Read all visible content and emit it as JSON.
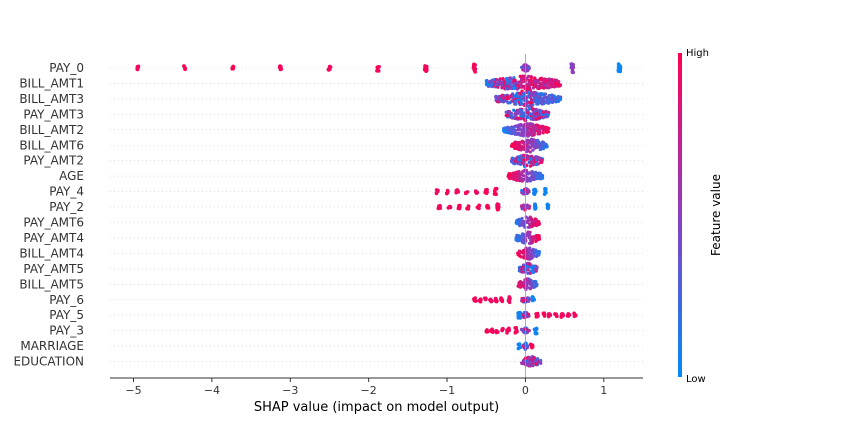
{
  "chart_data": {
    "type": "scatter",
    "subtype": "shap-beeswarm",
    "xlabel": "SHAP value (impact on model output)",
    "xlim": [
      -5.3,
      1.5
    ],
    "xticks": [
      -5,
      -4,
      -3,
      -2,
      -1,
      0,
      1
    ],
    "grid": false,
    "colorbar": {
      "title": "Feature value",
      "high_label": "High",
      "low_label": "Low",
      "low_color": "#008bfb",
      "mid_color": "#8c3fc1",
      "high_color": "#ff0052"
    },
    "features": [
      {
        "name": "PAY_0",
        "min": -4.95,
        "max": 1.2,
        "spread": 4.2,
        "body": [
          -0.05,
          0.05
        ],
        "clusters": [
          [
            -4.95,
            "h",
            2
          ],
          [
            -4.35,
            "h",
            2
          ],
          [
            -3.73,
            "h",
            2
          ],
          [
            -3.12,
            "h",
            2.5
          ],
          [
            -2.5,
            "h",
            3
          ],
          [
            -1.88,
            "h",
            3
          ],
          [
            -1.27,
            "h",
            3.5
          ],
          [
            -0.65,
            "h",
            4
          ],
          [
            0.0,
            "m",
            3
          ],
          [
            0.6,
            "m",
            4.5
          ],
          [
            1.2,
            "l",
            4
          ]
        ]
      },
      {
        "name": "BILL_AMT1",
        "min": -0.5,
        "max": 0.45,
        "spread": 8,
        "body": [
          -0.5,
          0.45
        ],
        "trend": "mixed-high-right"
      },
      {
        "name": "BILL_AMT3",
        "min": -0.38,
        "max": 0.45,
        "spread": 7.5,
        "body": [
          -0.38,
          0.45
        ],
        "trend": "mixed-low-right"
      },
      {
        "name": "PAY_AMT3",
        "min": -0.25,
        "max": 0.3,
        "spread": 7,
        "body": [
          -0.25,
          0.3
        ],
        "trend": "mixed"
      },
      {
        "name": "BILL_AMT2",
        "min": -0.28,
        "max": 0.3,
        "spread": 7,
        "body": [
          -0.28,
          0.3
        ],
        "trend": "low-left-high-right"
      },
      {
        "name": "BILL_AMT6",
        "min": -0.18,
        "max": 0.28,
        "spread": 7,
        "body": [
          -0.18,
          0.28
        ],
        "trend": "high-left-low-right"
      },
      {
        "name": "PAY_AMT2",
        "min": -0.18,
        "max": 0.22,
        "spread": 6.5,
        "body": [
          -0.18,
          0.22
        ],
        "trend": "mixed"
      },
      {
        "name": "AGE",
        "min": -0.22,
        "max": 0.22,
        "spread": 6.5,
        "body": [
          -0.22,
          0.22
        ],
        "trend": "high-left-low-right"
      },
      {
        "name": "PAY_4",
        "min": -1.12,
        "max": 0.25,
        "spread": 3.5,
        "body": [
          -0.05,
          0.05
        ],
        "clusters": [
          [
            -1.12,
            "h",
            2
          ],
          [
            -1.0,
            "h",
            2
          ],
          [
            -0.87,
            "h",
            2
          ],
          [
            -0.75,
            "h",
            2
          ],
          [
            -0.62,
            "h",
            2
          ],
          [
            -0.5,
            "h",
            2
          ],
          [
            -0.38,
            "h",
            3
          ],
          [
            0.12,
            "l",
            3
          ],
          [
            0.25,
            "l",
            3
          ]
        ]
      },
      {
        "name": "PAY_2",
        "min": -1.1,
        "max": 0.28,
        "spread": 3.5,
        "body": [
          -0.05,
          0.05
        ],
        "clusters": [
          [
            -1.1,
            "h",
            2
          ],
          [
            -0.97,
            "h",
            2
          ],
          [
            -0.85,
            "h",
            2
          ],
          [
            -0.73,
            "h",
            2
          ],
          [
            -0.6,
            "h",
            2
          ],
          [
            -0.48,
            "h",
            2
          ],
          [
            -0.35,
            "h",
            3
          ],
          [
            0.13,
            "l",
            3
          ],
          [
            0.28,
            "l",
            3
          ]
        ]
      },
      {
        "name": "PAY_AMT6",
        "min": -0.12,
        "max": 0.18,
        "spread": 6.5,
        "body": [
          -0.12,
          0.18
        ],
        "trend": "low-left-high-right"
      },
      {
        "name": "PAY_AMT4",
        "min": -0.12,
        "max": 0.18,
        "spread": 6.5,
        "body": [
          -0.12,
          0.18
        ],
        "trend": "low-left-high-right"
      },
      {
        "name": "BILL_AMT4",
        "min": -0.1,
        "max": 0.18,
        "spread": 6.5,
        "body": [
          -0.1,
          0.18
        ],
        "trend": "high-left-low-right"
      },
      {
        "name": "PAY_AMT5",
        "min": -0.08,
        "max": 0.15,
        "spread": 6,
        "body": [
          -0.08,
          0.15
        ],
        "trend": "mixed"
      },
      {
        "name": "BILL_AMT5",
        "min": -0.1,
        "max": 0.15,
        "spread": 6,
        "body": [
          -0.1,
          0.15
        ],
        "trend": "high-left-low-right"
      },
      {
        "name": "PAY_6",
        "min": -0.65,
        "max": 0.15,
        "spread": 3.5,
        "body": [
          -0.05,
          0.05
        ],
        "clusters": [
          [
            -0.65,
            "h",
            2
          ],
          [
            -0.58,
            "h",
            2
          ],
          [
            -0.51,
            "h",
            2
          ],
          [
            -0.44,
            "h",
            2
          ],
          [
            -0.37,
            "h",
            2
          ],
          [
            -0.3,
            "h",
            2
          ],
          [
            -0.2,
            "h",
            3
          ],
          [
            0.1,
            "l",
            3
          ]
        ]
      },
      {
        "name": "PAY_5",
        "min": -0.08,
        "max": 0.65,
        "spread": 3.5,
        "body": [
          -0.05,
          0.05
        ],
        "clusters": [
          [
            -0.08,
            "l",
            3
          ],
          [
            0.15,
            "h",
            2
          ],
          [
            0.23,
            "h",
            2
          ],
          [
            0.31,
            "h",
            2
          ],
          [
            0.39,
            "h",
            2
          ],
          [
            0.47,
            "h",
            2
          ],
          [
            0.55,
            "h",
            2
          ],
          [
            0.63,
            "h",
            2
          ]
        ]
      },
      {
        "name": "PAY_3",
        "min": -0.5,
        "max": 0.15,
        "spread": 3.5,
        "body": [
          -0.05,
          0.05
        ],
        "clusters": [
          [
            -0.5,
            "h",
            2
          ],
          [
            -0.43,
            "h",
            2
          ],
          [
            -0.36,
            "h",
            2
          ],
          [
            -0.29,
            "h",
            2
          ],
          [
            -0.22,
            "h",
            2.5
          ],
          [
            -0.12,
            "h",
            3
          ],
          [
            0.13,
            "l",
            3
          ]
        ]
      },
      {
        "name": "MARRIAGE",
        "min": -0.08,
        "max": 0.1,
        "spread": 3.5,
        "body": [
          -0.03,
          0.03
        ],
        "clusters": [
          [
            -0.08,
            "l",
            2.5
          ],
          [
            0.08,
            "h",
            2.5
          ]
        ]
      },
      {
        "name": "EDUCATION",
        "min": -0.05,
        "max": 0.2,
        "spread": 5.5,
        "body": [
          -0.05,
          0.2
        ],
        "trend": "mixed"
      }
    ]
  }
}
